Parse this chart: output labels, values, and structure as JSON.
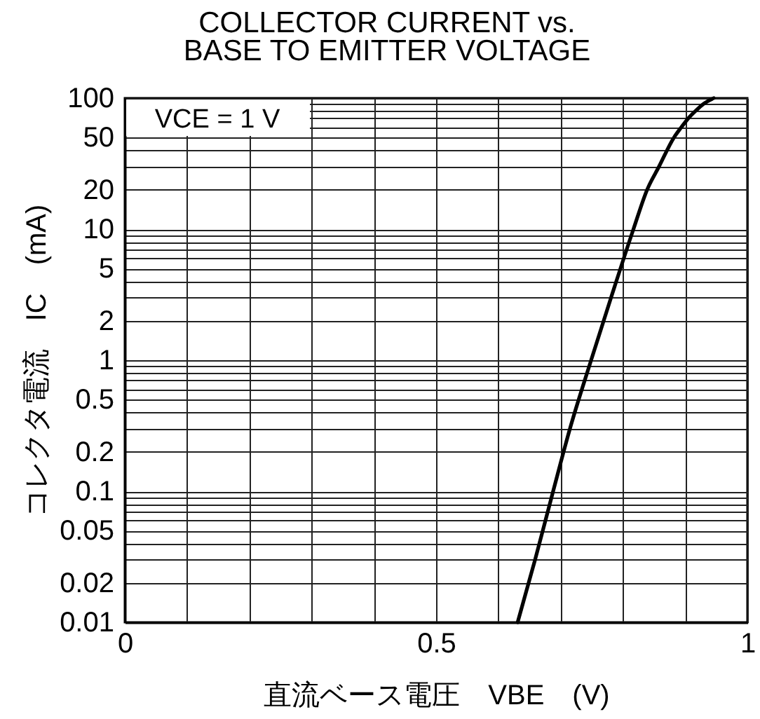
{
  "chart_data": {
    "type": "line",
    "title": "COLLECTOR CURRENT vs.\nBASE TO EMITTER VOLTAGE",
    "xlabel": "直流ベース電圧　VBE　(V)",
    "ylabel": "コレクタ電流　IC　(mA)",
    "annotations": [
      "VCE = 1 V"
    ],
    "log": "y",
    "grid": true,
    "x": [
      0.631,
      0.659,
      0.688,
      0.715,
      0.749,
      0.781,
      0.817,
      0.839,
      0.858,
      0.882,
      0.894,
      0.905,
      0.917,
      0.929,
      0.946
    ],
    "series": [
      {
        "color": "#000000",
        "values": [
          0.01,
          0.03,
          0.1,
          0.3,
          1,
          3,
          10,
          20,
          30,
          50,
          60,
          70,
          80,
          90,
          100
        ]
      }
    ],
    "xlim": [
      0,
      1
    ],
    "ylim": [
      0.01,
      100
    ],
    "xticks": [
      0,
      {
        "value": 0.1,
        "label": null
      },
      {
        "value": 0.2,
        "label": null
      },
      {
        "value": 0.3,
        "label": null
      },
      {
        "value": 0.4,
        "label": null
      },
      0.5,
      {
        "value": 0.6,
        "label": null
      },
      {
        "value": 0.7,
        "label": null
      },
      {
        "value": 0.8,
        "label": null
      },
      {
        "value": 0.9,
        "label": null
      },
      1
    ],
    "yticks": [
      0.01,
      0.02,
      {
        "value": 0.03,
        "label": null
      },
      {
        "value": 0.04,
        "label": null
      },
      0.05,
      {
        "value": 0.06,
        "label": null
      },
      {
        "value": 0.07,
        "label": null
      },
      {
        "value": 0.08,
        "label": null
      },
      {
        "value": 0.09,
        "label": null
      },
      0.1,
      0.2,
      {
        "value": 0.3,
        "label": null
      },
      {
        "value": 0.4,
        "label": null
      },
      0.5,
      {
        "value": 0.6,
        "label": null
      },
      {
        "value": 0.7,
        "label": null
      },
      {
        "value": 0.8,
        "label": null
      },
      {
        "value": 0.9,
        "label": null
      },
      1,
      2,
      {
        "value": 3,
        "label": null
      },
      {
        "value": 4,
        "label": null
      },
      5,
      {
        "value": 6,
        "label": null
      },
      {
        "value": 7,
        "label": null
      },
      {
        "value": 8,
        "label": null
      },
      {
        "value": 9,
        "label": null
      },
      10,
      20,
      {
        "value": 30,
        "label": null
      },
      {
        "value": 40,
        "label": null
      },
      50,
      {
        "value": 60,
        "label": null
      },
      {
        "value": 70,
        "label": null
      },
      {
        "value": 80,
        "label": null
      },
      {
        "value": 90,
        "label": null
      },
      100
    ]
  }
}
